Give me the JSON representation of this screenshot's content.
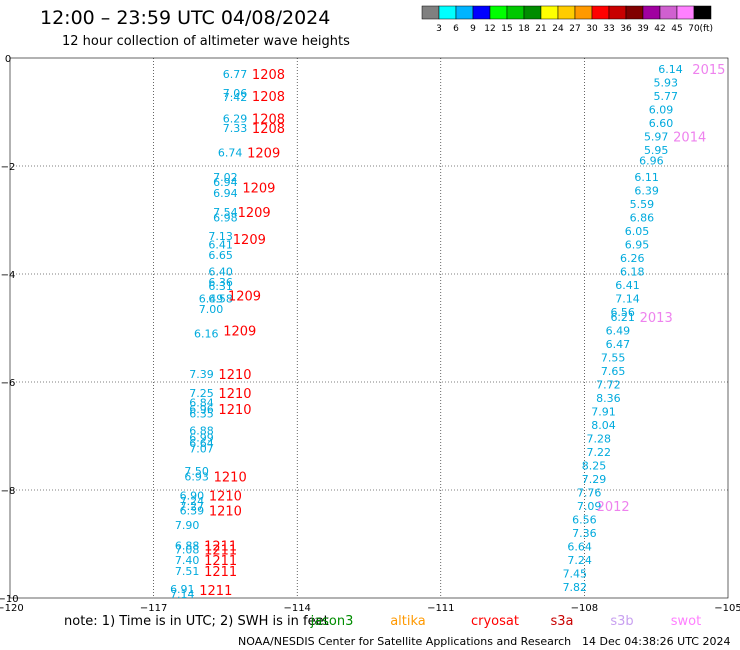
{
  "title": "12:00 – 23:59 UTC 04/08/2024",
  "subtitle": "12 hour collection of altimeter wave heights",
  "legend": {
    "colors": [
      "#808080",
      "#00ffff",
      "#00b4ff",
      "#0000ff",
      "#00ff00",
      "#00c800",
      "#008c00",
      "#ffff00",
      "#ffcc00",
      "#ff9900",
      "#ff0000",
      "#c80000",
      "#800000",
      "#a000a0",
      "#d060d0",
      "#ff80ff",
      "#000000"
    ],
    "labels": [
      "3",
      "6",
      "9",
      "12",
      "15",
      "18",
      "21",
      "24",
      "27",
      "30",
      "33",
      "36",
      "39",
      "42",
      "45",
      "70"
    ],
    "unit": "(ft)"
  },
  "note": {
    "text": "note: 1) Time is in UTC; 2) SWH is in feet",
    "color": "#000000"
  },
  "satellites": [
    {
      "name": "jason3",
      "color": "#008c00"
    },
    {
      "name": "altika",
      "color": "#ff9900"
    },
    {
      "name": "cryosat",
      "color": "#ff0000"
    },
    {
      "name": "s3a",
      "color": "#c80000"
    },
    {
      "name": "s3b",
      "color": "#c8a0f0"
    },
    {
      "name": "swot",
      "color": "#ff80ff"
    }
  ],
  "footer": {
    "credit": "NOAA/NESDIS Center for Satellite Applications and Research",
    "timestamp": "14 Dec 04:38:26 UTC 2024"
  },
  "chart_data": {
    "type": "scatter",
    "title": "12:00 – 23:59 UTC 04/08/2024",
    "xlim": [
      -120,
      -105
    ],
    "ylim": [
      -10,
      0
    ],
    "xticks": [
      -120,
      -117,
      -114,
      -111,
      -108,
      -105
    ],
    "xtick_labels": [
      "−120",
      "−117",
      "−114",
      "−111",
      "−108",
      "−105"
    ],
    "yticks": [
      0,
      -2,
      -4,
      -6,
      -8,
      -10
    ],
    "ytick_labels": [
      "0",
      "−2",
      "−4",
      "−6",
      "−8",
      "−10"
    ],
    "grid": true,
    "swh_color": "#00aadd",
    "cycle_color": "#ff0000",
    "cycle_color_alt": "#ee82ee",
    "swh_points": [
      {
        "lon": -115.3,
        "lat": -0.3,
        "v": "6.77"
      },
      {
        "lon": -115.3,
        "lat": -0.65,
        "v": "7.06"
      },
      {
        "lon": -115.3,
        "lat": -0.72,
        "v": "7.42"
      },
      {
        "lon": -115.3,
        "lat": -1.12,
        "v": "6.29"
      },
      {
        "lon": -115.3,
        "lat": -1.3,
        "v": "7.33"
      },
      {
        "lon": -115.4,
        "lat": -1.75,
        "v": "6.74"
      },
      {
        "lon": -115.5,
        "lat": -2.2,
        "v": "7.02"
      },
      {
        "lon": -115.5,
        "lat": -2.3,
        "v": "6.94"
      },
      {
        "lon": -115.5,
        "lat": -2.5,
        "v": "6.94"
      },
      {
        "lon": -115.5,
        "lat": -2.85,
        "v": "7.54"
      },
      {
        "lon": -115.5,
        "lat": -2.95,
        "v": "6.98"
      },
      {
        "lon": -115.6,
        "lat": -3.3,
        "v": "7.13"
      },
      {
        "lon": -115.6,
        "lat": -3.45,
        "v": "6.41"
      },
      {
        "lon": -115.6,
        "lat": -3.65,
        "v": "6.65"
      },
      {
        "lon": -115.6,
        "lat": -3.95,
        "v": "6.40"
      },
      {
        "lon": -115.6,
        "lat": -4.15,
        "v": "6.36"
      },
      {
        "lon": -115.6,
        "lat": -4.22,
        "v": "6.31"
      },
      {
        "lon": -115.6,
        "lat": -4.45,
        "v": "6.58"
      },
      {
        "lon": -115.8,
        "lat": -4.45,
        "v": "6.49"
      },
      {
        "lon": -115.8,
        "lat": -4.65,
        "v": "7.00"
      },
      {
        "lon": -115.9,
        "lat": -5.1,
        "v": "6.16"
      },
      {
        "lon": -116.0,
        "lat": -5.85,
        "v": "7.39"
      },
      {
        "lon": -116.0,
        "lat": -6.2,
        "v": "7.25"
      },
      {
        "lon": -116.0,
        "lat": -6.38,
        "v": "6.84"
      },
      {
        "lon": -116.0,
        "lat": -6.5,
        "v": "6.96"
      },
      {
        "lon": -116.0,
        "lat": -6.58,
        "v": "6.35"
      },
      {
        "lon": -116.0,
        "lat": -6.9,
        "v": "6.88"
      },
      {
        "lon": -116.0,
        "lat": -7.03,
        "v": "6.99"
      },
      {
        "lon": -116.0,
        "lat": -7.13,
        "v": "6.64"
      },
      {
        "lon": -116.0,
        "lat": -7.23,
        "v": "7.07"
      },
      {
        "lon": -116.1,
        "lat": -7.65,
        "v": "7.50"
      },
      {
        "lon": -116.1,
        "lat": -7.75,
        "v": "6.93"
      },
      {
        "lon": -116.2,
        "lat": -8.1,
        "v": "6.90"
      },
      {
        "lon": -116.2,
        "lat": -8.2,
        "v": "7.24"
      },
      {
        "lon": -116.2,
        "lat": -8.3,
        "v": "7.27"
      },
      {
        "lon": -116.2,
        "lat": -8.38,
        "v": "6.39"
      },
      {
        "lon": -116.3,
        "lat": -8.65,
        "v": "7.90"
      },
      {
        "lon": -116.3,
        "lat": -9.03,
        "v": "6.88"
      },
      {
        "lon": -116.3,
        "lat": -9.1,
        "v": "7.08"
      },
      {
        "lon": -116.3,
        "lat": -9.3,
        "v": "7.40"
      },
      {
        "lon": -116.3,
        "lat": -9.5,
        "v": "7.51"
      },
      {
        "lon": -116.4,
        "lat": -9.83,
        "v": "6.91"
      },
      {
        "lon": -116.4,
        "lat": -9.93,
        "v": "7.14"
      },
      {
        "lon": -106.2,
        "lat": -0.2,
        "v": "6.14"
      },
      {
        "lon": -106.3,
        "lat": -0.45,
        "v": "5.93"
      },
      {
        "lon": -106.3,
        "lat": -0.7,
        "v": "5.77"
      },
      {
        "lon": -106.4,
        "lat": -0.95,
        "v": "6.09"
      },
      {
        "lon": -106.4,
        "lat": -1.2,
        "v": "6.60"
      },
      {
        "lon": -106.5,
        "lat": -1.45,
        "v": "5.97"
      },
      {
        "lon": -106.5,
        "lat": -1.7,
        "v": "5.95"
      },
      {
        "lon": -106.6,
        "lat": -1.9,
        "v": "6.96"
      },
      {
        "lon": -106.7,
        "lat": -2.2,
        "v": "6.11"
      },
      {
        "lon": -106.7,
        "lat": -2.45,
        "v": "6.39"
      },
      {
        "lon": -106.8,
        "lat": -2.7,
        "v": "5.59"
      },
      {
        "lon": -106.8,
        "lat": -2.95,
        "v": "6.86"
      },
      {
        "lon": -106.9,
        "lat": -3.2,
        "v": "6.05"
      },
      {
        "lon": -106.9,
        "lat": -3.45,
        "v": "6.95"
      },
      {
        "lon": -107.0,
        "lat": -3.7,
        "v": "6.26"
      },
      {
        "lon": -107.0,
        "lat": -3.95,
        "v": "6.18"
      },
      {
        "lon": -107.1,
        "lat": -4.2,
        "v": "6.41"
      },
      {
        "lon": -107.1,
        "lat": -4.45,
        "v": "7.14"
      },
      {
        "lon": -107.2,
        "lat": -4.7,
        "v": "6.56"
      },
      {
        "lon": -107.2,
        "lat": -4.8,
        "v": "6.21"
      },
      {
        "lon": -107.3,
        "lat": -5.05,
        "v": "6.49"
      },
      {
        "lon": -107.3,
        "lat": -5.3,
        "v": "6.47"
      },
      {
        "lon": -107.4,
        "lat": -5.55,
        "v": "7.55"
      },
      {
        "lon": -107.4,
        "lat": -5.8,
        "v": "7.65"
      },
      {
        "lon": -107.5,
        "lat": -6.05,
        "v": "7.72"
      },
      {
        "lon": -107.5,
        "lat": -6.3,
        "v": "8.36"
      },
      {
        "lon": -107.6,
        "lat": -6.55,
        "v": "7.91"
      },
      {
        "lon": -107.6,
        "lat": -6.8,
        "v": "8.04"
      },
      {
        "lon": -107.7,
        "lat": -7.05,
        "v": "7.28"
      },
      {
        "lon": -107.7,
        "lat": -7.3,
        "v": "7.22"
      },
      {
        "lon": -107.8,
        "lat": -7.55,
        "v": "8.25"
      },
      {
        "lon": -107.8,
        "lat": -7.8,
        "v": "7.29"
      },
      {
        "lon": -107.9,
        "lat": -8.05,
        "v": "7.76"
      },
      {
        "lon": -107.9,
        "lat": -8.3,
        "v": "7.09"
      },
      {
        "lon": -108.0,
        "lat": -8.55,
        "v": "6.56"
      },
      {
        "lon": -108.0,
        "lat": -8.8,
        "v": "7.36"
      },
      {
        "lon": -108.1,
        "lat": -9.05,
        "v": "6.64"
      },
      {
        "lon": -108.1,
        "lat": -9.3,
        "v": "7.24"
      },
      {
        "lon": -108.2,
        "lat": -9.55,
        "v": "7.45"
      },
      {
        "lon": -108.2,
        "lat": -9.8,
        "v": "7.82"
      }
    ],
    "cycle_labels": [
      {
        "lon": -114.6,
        "lat": -0.3,
        "v": "1208"
      },
      {
        "lon": -114.6,
        "lat": -0.7,
        "v": "1208"
      },
      {
        "lon": -114.6,
        "lat": -1.12,
        "v": "1208"
      },
      {
        "lon": -114.6,
        "lat": -1.3,
        "v": "1208"
      },
      {
        "lon": -114.7,
        "lat": -1.75,
        "v": "1209"
      },
      {
        "lon": -114.8,
        "lat": -2.4,
        "v": "1209"
      },
      {
        "lon": -114.9,
        "lat": -2.85,
        "v": "1209"
      },
      {
        "lon": -115.0,
        "lat": -3.35,
        "v": "1209"
      },
      {
        "lon": -115.1,
        "lat": -4.4,
        "v": "1209"
      },
      {
        "lon": -115.2,
        "lat": -5.05,
        "v": "1209"
      },
      {
        "lon": -115.3,
        "lat": -5.85,
        "v": "1210"
      },
      {
        "lon": -115.3,
        "lat": -6.2,
        "v": "1210"
      },
      {
        "lon": -115.3,
        "lat": -6.5,
        "v": "1210"
      },
      {
        "lon": -115.4,
        "lat": -7.75,
        "v": "1210"
      },
      {
        "lon": -115.5,
        "lat": -8.1,
        "v": "1210"
      },
      {
        "lon": -115.5,
        "lat": -8.38,
        "v": "1210"
      },
      {
        "lon": -115.6,
        "lat": -9.03,
        "v": "1211"
      },
      {
        "lon": -115.6,
        "lat": -9.1,
        "v": "1211"
      },
      {
        "lon": -115.6,
        "lat": -9.3,
        "v": "1211"
      },
      {
        "lon": -115.6,
        "lat": -9.5,
        "v": "1211"
      },
      {
        "lon": -115.7,
        "lat": -9.85,
        "v": "1211"
      }
    ],
    "cycle_labels_alt": [
      {
        "lon": -105.4,
        "lat": -0.2,
        "v": "2015"
      },
      {
        "lon": -105.8,
        "lat": -1.45,
        "v": "2014"
      },
      {
        "lon": -106.5,
        "lat": -4.8,
        "v": "2013"
      },
      {
        "lon": -107.4,
        "lat": -8.3,
        "v": "2012"
      }
    ]
  }
}
